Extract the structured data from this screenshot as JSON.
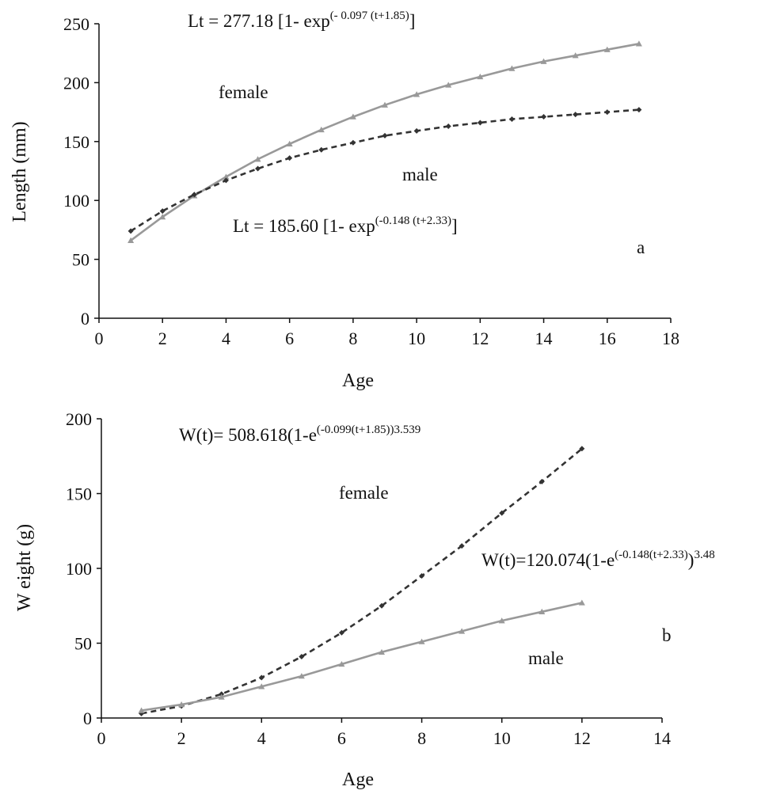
{
  "chart_data": [
    {
      "type": "line",
      "panel_label": "a",
      "xlabel": "Age",
      "ylabel": "Length (mm)",
      "xlim": [
        0,
        18
      ],
      "ylim": [
        0,
        250
      ],
      "x_ticks": [
        "0",
        "2",
        "4",
        "6",
        "8",
        "10",
        "12",
        "14",
        "16",
        "18"
      ],
      "y_ticks": [
        "0",
        "50",
        "100",
        "150",
        "200",
        "250"
      ],
      "grid": false,
      "series": [
        {
          "label": "female",
          "line_style": "solid",
          "marker": "triangle",
          "color": "#999999",
          "x": [
            1,
            2,
            3,
            4,
            5,
            6,
            7,
            8,
            9,
            10,
            11,
            12,
            13,
            14,
            15,
            16,
            17
          ],
          "y": [
            66,
            86,
            104,
            120,
            135,
            148,
            160,
            171,
            181,
            190,
            198,
            205,
            212,
            218,
            223,
            228,
            233
          ]
        },
        {
          "label": "male",
          "line_style": "dashed",
          "marker": "diamond",
          "color": "#333333",
          "x": [
            1,
            2,
            3,
            4,
            5,
            6,
            7,
            8,
            9,
            10,
            11,
            12,
            13,
            14,
            15,
            16,
            17
          ],
          "y": [
            74,
            91,
            105,
            117,
            127,
            136,
            143,
            149,
            155,
            159,
            163,
            166,
            169,
            171,
            173,
            175,
            177
          ]
        }
      ],
      "equations": [
        {
          "main": "Lt = 277.18 [1- exp",
          "sup": "(- 0.097 (t+1.85)",
          "tail": "]"
        },
        {
          "main": "Lt = 185.60 [1- exp",
          "sup": "(-0.148 (t+2.33)",
          "tail": "]"
        }
      ]
    },
    {
      "type": "line",
      "panel_label": "b",
      "xlabel": "Age",
      "ylabel": "W eight (g)",
      "xlim": [
        0,
        14
      ],
      "ylim": [
        0,
        200
      ],
      "x_ticks": [
        "0",
        "2",
        "4",
        "6",
        "8",
        "10",
        "12",
        "14"
      ],
      "y_ticks": [
        "0",
        "50",
        "100",
        "150",
        "200"
      ],
      "grid": false,
      "series": [
        {
          "label": "female",
          "line_style": "dashed",
          "marker": "diamond",
          "color": "#333333",
          "x": [
            1,
            2,
            3,
            4,
            5,
            6,
            7,
            8,
            9,
            10,
            11,
            12
          ],
          "y": [
            3,
            8,
            16,
            27,
            41,
            57,
            75,
            95,
            115,
            137,
            158,
            180
          ]
        },
        {
          "label": "male",
          "line_style": "solid",
          "marker": "triangle",
          "color": "#999999",
          "x": [
            1,
            2,
            3,
            4,
            5,
            6,
            7,
            8,
            9,
            10,
            11,
            12
          ],
          "y": [
            5,
            9,
            14,
            21,
            28,
            36,
            44,
            51,
            58,
            65,
            71,
            77
          ]
        }
      ],
      "equations": [
        {
          "main": "W(t)= 508.618(1-e",
          "sup": "(-0.099(t+1.85)",
          "sup2": "3.539"
        },
        {
          "main": "W(t)=120.074(1-e",
          "sup": "(-0.148(t+2.33)",
          "sup2": "3.48"
        }
      ]
    }
  ]
}
